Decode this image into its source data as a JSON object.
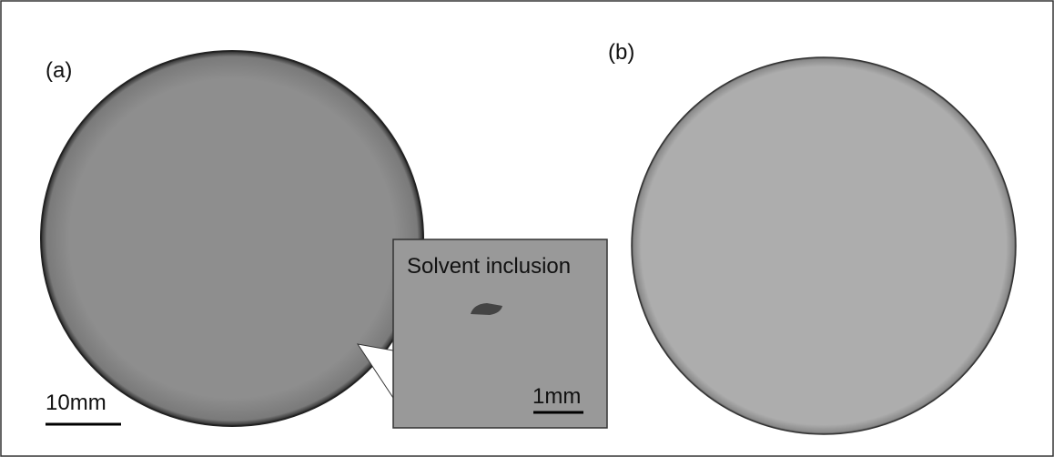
{
  "panels": [
    {
      "label": "(a)",
      "scale_bar": "10mm",
      "inset": {
        "label": "Solvent inclusion",
        "scale_bar": "1mm"
      }
    },
    {
      "label": "(b)"
    }
  ]
}
